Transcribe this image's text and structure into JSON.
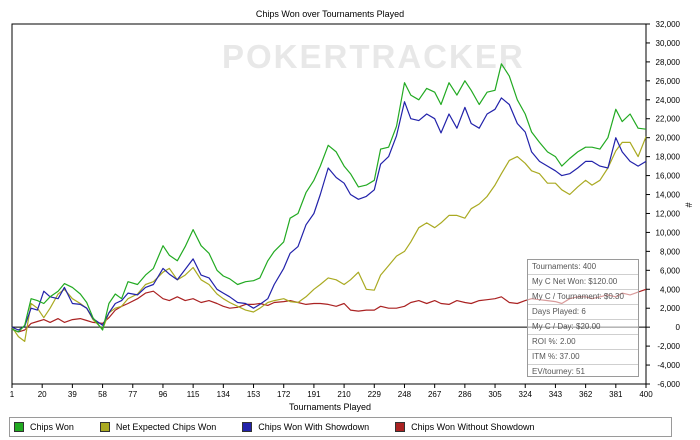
{
  "chart_data": {
    "type": "line",
    "title": "Chips Won over Tournaments Played",
    "xlabel": "Tournaments Played",
    "ylabel": "#",
    "xlim": [
      1,
      400
    ],
    "ylim": [
      -6000,
      32000
    ],
    "x_ticks": [
      "1",
      "20",
      "39",
      "58",
      "77",
      "96",
      "115",
      "134",
      "153",
      "172",
      "191",
      "210",
      "229",
      "248",
      "267",
      "286",
      "305",
      "324",
      "343",
      "362",
      "381",
      "400"
    ],
    "y_ticks": [
      "32,000",
      "30,000",
      "28,000",
      "26,000",
      "24,000",
      "22,000",
      "20,000",
      "18,000",
      "16,000",
      "14,000",
      "12,000",
      "10,000",
      "8,000",
      "6,000",
      "4,000",
      "2,000",
      "0",
      "-2,000",
      "-4,000",
      "-6,000"
    ],
    "watermark": "POKERTRACKER",
    "series": [
      {
        "name": "Chips Won",
        "color": "#22aa22",
        "x": [
          1,
          5,
          9,
          13,
          17,
          21,
          25,
          30,
          34,
          39,
          44,
          48,
          52,
          58,
          62,
          66,
          70,
          74,
          80,
          85,
          90,
          96,
          100,
          105,
          110,
          115,
          120,
          125,
          130,
          134,
          138,
          143,
          148,
          153,
          157,
          162,
          166,
          172,
          176,
          181,
          186,
          191,
          195,
          200,
          205,
          210,
          214,
          219,
          224,
          229,
          233,
          238,
          243,
          248,
          252,
          257,
          262,
          267,
          271,
          276,
          281,
          286,
          290,
          295,
          300,
          305,
          309,
          314,
          319,
          324,
          328,
          333,
          338,
          343,
          347,
          352,
          357,
          362,
          366,
          371,
          376,
          381,
          385,
          390,
          395,
          400
        ],
        "y": [
          -200,
          -500,
          200,
          3000,
          2800,
          2500,
          3200,
          3800,
          4600,
          4200,
          3500,
          2600,
          1000,
          -300,
          2500,
          3500,
          3000,
          4800,
          4500,
          5500,
          6200,
          8600,
          7600,
          7000,
          8500,
          10300,
          8600,
          7800,
          6000,
          5400,
          5100,
          4500,
          4800,
          4900,
          5200,
          7000,
          8000,
          9000,
          11500,
          12000,
          14200,
          15500,
          17000,
          19200,
          18500,
          17000,
          16200,
          14800,
          15000,
          15500,
          18800,
          19000,
          21200,
          25800,
          24500,
          24000,
          25200,
          24800,
          23500,
          25800,
          24500,
          26000,
          25000,
          23500,
          24800,
          25000,
          27800,
          26500,
          24000,
          22500,
          20600,
          19500,
          18500,
          18000,
          17000,
          17800,
          18500,
          19000,
          19000,
          18800,
          20000,
          23000,
          21700,
          22500,
          21000,
          20900
        ]
      },
      {
        "name": "Net Expected Chips Won",
        "color": "#aaaa22",
        "x": [
          1,
          5,
          9,
          13,
          17,
          21,
          25,
          30,
          34,
          39,
          44,
          48,
          52,
          58,
          62,
          66,
          70,
          74,
          80,
          85,
          90,
          96,
          100,
          105,
          110,
          115,
          120,
          125,
          130,
          134,
          138,
          143,
          148,
          153,
          157,
          162,
          166,
          172,
          176,
          181,
          186,
          191,
          195,
          200,
          205,
          210,
          214,
          219,
          224,
          229,
          233,
          238,
          243,
          248,
          252,
          257,
          262,
          267,
          271,
          276,
          281,
          286,
          290,
          295,
          300,
          305,
          309,
          314,
          319,
          324,
          328,
          333,
          338,
          343,
          347,
          352,
          357,
          362,
          366,
          371,
          376,
          381,
          385,
          390,
          395,
          400
        ],
        "y": [
          0,
          -1000,
          -1500,
          2500,
          2000,
          1000,
          2000,
          3500,
          4000,
          3000,
          2500,
          2000,
          800,
          -200,
          1500,
          2000,
          2200,
          3000,
          3500,
          4500,
          4800,
          5800,
          6200,
          5000,
          5500,
          6300,
          5000,
          4500,
          3500,
          3000,
          2600,
          2200,
          1800,
          1600,
          2000,
          2600,
          2800,
          3000,
          2700,
          2600,
          3200,
          4000,
          4500,
          5200,
          5000,
          4500,
          5000,
          5800,
          4000,
          3900,
          5500,
          6500,
          7500,
          8000,
          9000,
          10500,
          11000,
          10500,
          11000,
          11800,
          11800,
          11500,
          12500,
          13000,
          13800,
          15000,
          16200,
          17600,
          18000,
          17300,
          16500,
          16200,
          15200,
          15200,
          14500,
          14000,
          14800,
          15500,
          15000,
          15500,
          16800,
          18600,
          19500,
          19500,
          18000,
          20100
        ]
      },
      {
        "name": "Chips Won With Showdown",
        "color": "#2222aa",
        "x": [
          1,
          5,
          9,
          13,
          17,
          21,
          25,
          30,
          34,
          39,
          44,
          48,
          52,
          58,
          62,
          66,
          70,
          74,
          80,
          85,
          90,
          96,
          100,
          105,
          110,
          115,
          120,
          125,
          130,
          134,
          138,
          143,
          148,
          153,
          157,
          162,
          166,
          172,
          176,
          181,
          186,
          191,
          195,
          200,
          205,
          210,
          214,
          219,
          224,
          229,
          233,
          238,
          243,
          248,
          252,
          257,
          262,
          267,
          271,
          276,
          281,
          286,
          290,
          295,
          300,
          305,
          309,
          314,
          319,
          324,
          328,
          333,
          338,
          343,
          347,
          352,
          357,
          362,
          366,
          371,
          376,
          381,
          385,
          390,
          395,
          400
        ],
        "y": [
          0,
          -300,
          100,
          2000,
          1800,
          3800,
          3200,
          3000,
          4200,
          2500,
          2400,
          2000,
          900,
          200,
          1500,
          2500,
          2800,
          3600,
          3400,
          4200,
          4500,
          6200,
          5600,
          5000,
          6100,
          7200,
          5500,
          5200,
          4000,
          3600,
          3200,
          2600,
          2500,
          2000,
          2400,
          3000,
          4500,
          6200,
          7800,
          8500,
          10800,
          12000,
          14000,
          16800,
          15800,
          15200,
          14000,
          13500,
          13800,
          14500,
          17200,
          18000,
          20200,
          23800,
          22000,
          21800,
          22500,
          22000,
          20500,
          22500,
          21000,
          23200,
          21500,
          21000,
          22500,
          23000,
          24200,
          23500,
          21500,
          20600,
          18500,
          17500,
          17000,
          16500,
          16000,
          16200,
          16800,
          17500,
          17500,
          17000,
          16800,
          20000,
          18500,
          17500,
          17000,
          17500
        ]
      },
      {
        "name": "Chips Won Without Showdown",
        "color": "#aa2222",
        "x": [
          1,
          5,
          9,
          13,
          17,
          21,
          25,
          30,
          34,
          39,
          44,
          48,
          52,
          58,
          62,
          66,
          70,
          74,
          80,
          85,
          90,
          96,
          100,
          105,
          110,
          115,
          120,
          125,
          130,
          134,
          138,
          143,
          148,
          153,
          157,
          162,
          166,
          172,
          176,
          181,
          186,
          191,
          195,
          200,
          205,
          210,
          214,
          219,
          224,
          229,
          233,
          238,
          243,
          248,
          252,
          257,
          262,
          267,
          271,
          276,
          281,
          286,
          290,
          295,
          300,
          305,
          309,
          314,
          319,
          324,
          328,
          333,
          338,
          343,
          347,
          352,
          357,
          362,
          366,
          371,
          376,
          381,
          385,
          390,
          395,
          400
        ],
        "y": [
          -200,
          -500,
          -300,
          400,
          600,
          800,
          500,
          900,
          500,
          800,
          900,
          700,
          500,
          400,
          1000,
          1800,
          2200,
          2500,
          3000,
          3600,
          3800,
          3000,
          2800,
          3200,
          2800,
          3000,
          2600,
          2800,
          2500,
          2200,
          2000,
          2100,
          2400,
          2400,
          2500,
          2300,
          2600,
          2700,
          2800,
          2600,
          2400,
          2500,
          2500,
          2400,
          2200,
          2500,
          1800,
          1700,
          1800,
          1800,
          2200,
          2000,
          2000,
          2200,
          2600,
          2800,
          2500,
          2800,
          2500,
          2400,
          2800,
          2600,
          2500,
          2800,
          2900,
          3000,
          3200,
          2600,
          2500,
          2800,
          3000,
          2900,
          2800,
          2700,
          2500,
          3000,
          3200,
          3200,
          3000,
          3200,
          3400,
          3200,
          3600,
          3400,
          3700,
          4000
        ]
      }
    ]
  },
  "legend": {
    "items": [
      {
        "label": "Chips Won",
        "color": "#22aa22"
      },
      {
        "label": "Net Expected Chips Won",
        "color": "#aaaa22"
      },
      {
        "label": "Chips Won With Showdown",
        "color": "#2222aa"
      },
      {
        "label": "Chips Won Without Showdown",
        "color": "#aa2222"
      }
    ]
  },
  "stats": {
    "tournaments": "Tournaments: 400",
    "net_won": "My C Net Won: $120.00",
    "per_tournament": "My C / Tournament: $0.30",
    "days_played": "Days Played: 6",
    "per_day": "My C / Day: $20.00",
    "roi": "ROI %: 2.00",
    "itm": "ITM %: 37.00",
    "ev": "EV/tourney: 51"
  }
}
